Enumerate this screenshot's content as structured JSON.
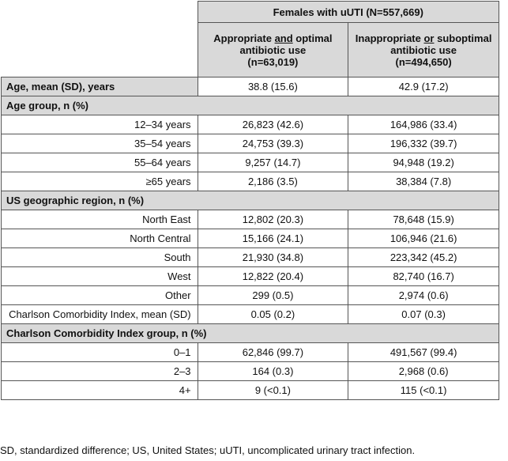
{
  "table": {
    "group_header": "Females with uUTI (N=557,669)",
    "columns": [
      {
        "pre": "Appropriate ",
        "underlined": "and",
        "post": " optimal antibiotic use",
        "n": "(n=63,019)"
      },
      {
        "pre": "Inappropriate ",
        "underlined": "or",
        "post": " suboptimal antibiotic use",
        "n": "(n=494,650)"
      }
    ],
    "rows": [
      {
        "label": "Age, mean (SD), years",
        "cells": [
          "38.8 (15.6)",
          "42.9 (17.2)"
        ]
      },
      {
        "label": "Age group, n (%)"
      },
      {
        "label": "12–34 years",
        "cells": [
          "26,823 (42.6)",
          "164,986 (33.4)"
        ]
      },
      {
        "label": "35–54 years",
        "cells": [
          "24,753 (39.3)",
          "196,332 (39.7)"
        ]
      },
      {
        "label": "55–64 years",
        "cells": [
          "9,257 (14.7)",
          "94,948 (19.2)"
        ]
      },
      {
        "label": "≥65 years",
        "cells": [
          "2,186 (3.5)",
          "38,384 (7.8)"
        ]
      },
      {
        "label": "US geographic region, n (%)"
      },
      {
        "label": "North East",
        "cells": [
          "12,802 (20.3)",
          "78,648 (15.9)"
        ]
      },
      {
        "label": "North Central",
        "cells": [
          "15,166 (24.1)",
          "106,946 (21.6)"
        ]
      },
      {
        "label": "South",
        "cells": [
          "21,930 (34.8)",
          "223,342 (45.2)"
        ]
      },
      {
        "label": "West",
        "cells": [
          "12,822 (20.4)",
          "82,740 (16.7)"
        ]
      },
      {
        "label": "Other",
        "cells": [
          "299 (0.5)",
          "2,974 (0.6)"
        ]
      },
      {
        "label": "Charlson Comorbidity Index, mean (SD)",
        "cells": [
          "0.05 (0.2)",
          "0.07 (0.3)"
        ]
      },
      {
        "label": "Charlson Comorbidity Index group, n (%)"
      },
      {
        "label": "0–1",
        "cells": [
          "62,846 (99.7)",
          "491,567 (99.4)"
        ]
      },
      {
        "label": "2–3",
        "cells": [
          "164 (0.3)",
          "2,968 (0.6)"
        ]
      },
      {
        "label": "4+",
        "cells": [
          "9 (<0.1)",
          "115 (<0.1)"
        ]
      }
    ]
  },
  "footnote": "SD, standardized difference; US, United States; uUTI, uncomplicated urinary tract infection."
}
